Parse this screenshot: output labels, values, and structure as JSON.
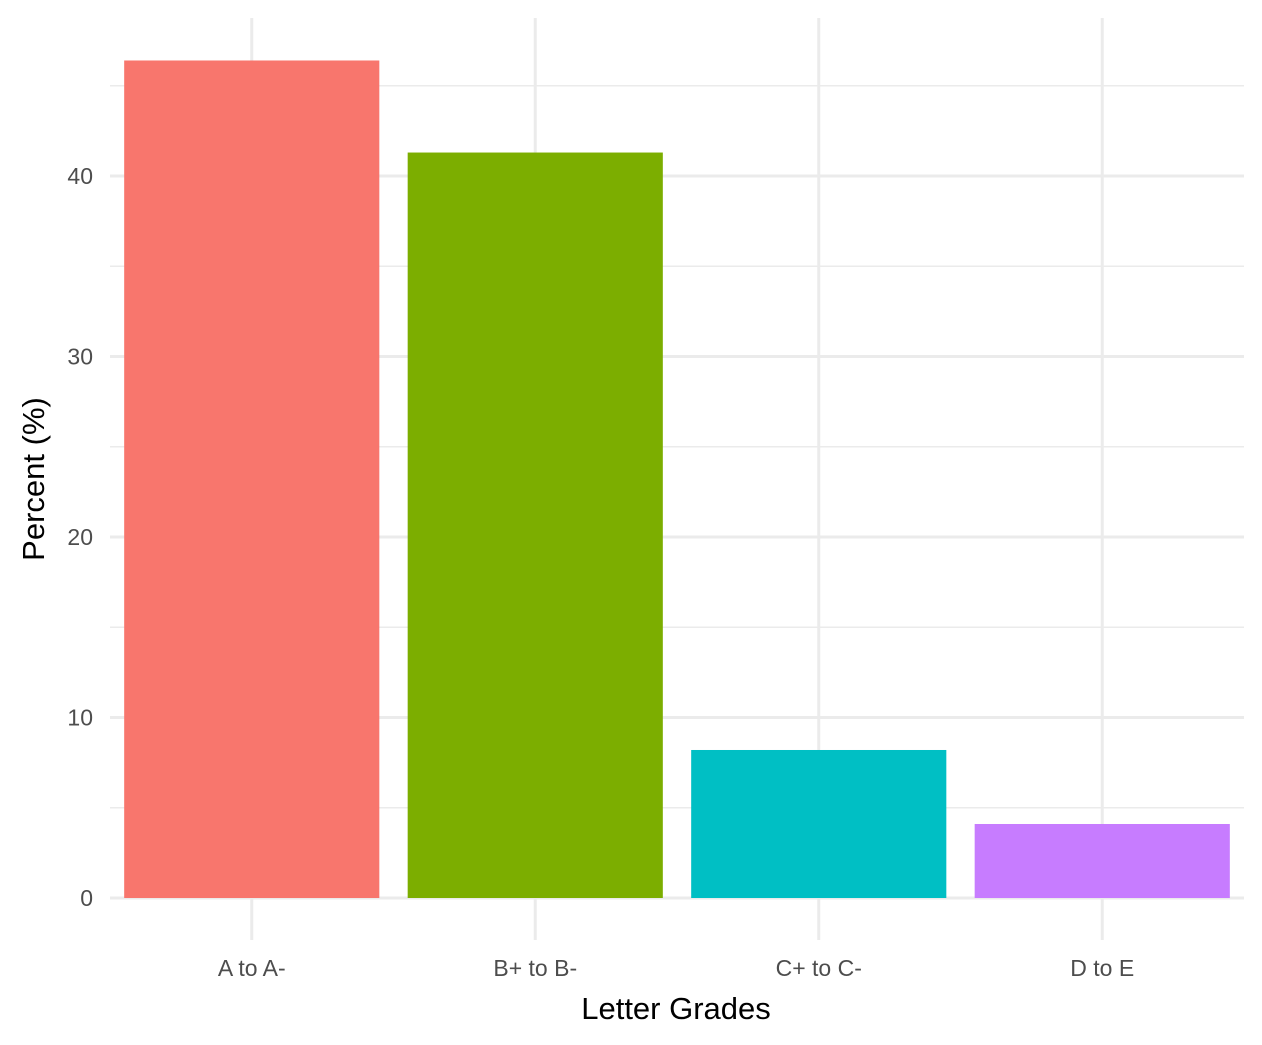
{
  "chart_data": {
    "type": "bar",
    "title": "",
    "xlabel": "Letter Grades",
    "ylabel": "Percent (%)",
    "categories": [
      "A to A-",
      "B+ to B-",
      "C+ to C-",
      "D to E"
    ],
    "values": [
      46.4,
      41.3,
      8.2,
      4.1
    ],
    "colors": [
      "#F8766D",
      "#7CAE00",
      "#00BFC4",
      "#C77CFF"
    ],
    "ylim": [
      0,
      48.6
    ],
    "yticks": [
      0,
      10,
      20,
      30,
      40
    ],
    "grid": true,
    "legend": "none"
  }
}
